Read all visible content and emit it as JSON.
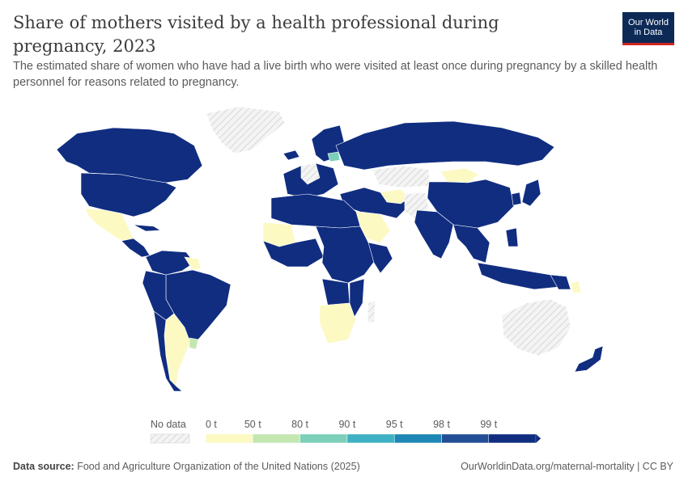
{
  "title": "Share of mothers visited by a health professional during pregnancy, 2023",
  "subtitle": "The estimated share of women who have had a live birth who were visited at least once during pregnancy by a skilled health personnel for reasons related to pregnancy.",
  "logo": {
    "line1": "Our World",
    "line2": "in Data"
  },
  "legend": {
    "no_data_label": "No data",
    "bins": [
      {
        "label": "0 t",
        "color": "#fcf9c3"
      },
      {
        "label": "50 t",
        "color": "#c4e7b2"
      },
      {
        "label": "80 t",
        "color": "#7ccfb8"
      },
      {
        "label": "90 t",
        "color": "#3eb2c4"
      },
      {
        "label": "95 t",
        "color": "#1e87b5"
      },
      {
        "label": "98 t",
        "color": "#234f96"
      },
      {
        "label": "99 t",
        "color": "#102d80"
      }
    ]
  },
  "colors": {
    "high": "#102d80",
    "low": "#fcf9c3",
    "mid": "#c4e7b2",
    "no_data": "#e6e6e6"
  },
  "footer": {
    "source_label": "Data source:",
    "source_text": "Food and Agriculture Organization of the United Nations (2025)",
    "url": "OurWorldinData.org/maternal-mortality | CC BY"
  }
}
